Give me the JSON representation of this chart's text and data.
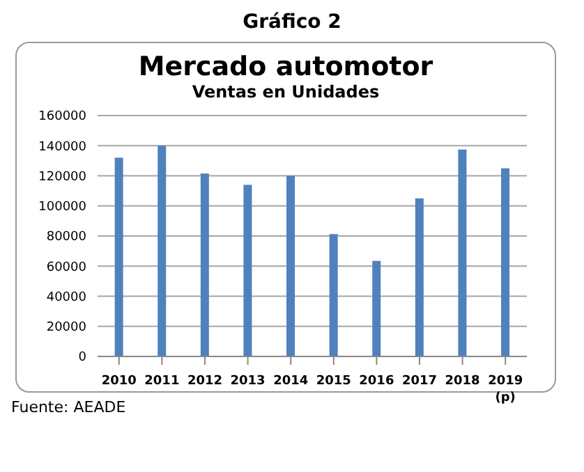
{
  "chart_data": {
    "type": "bar",
    "title": "Mercado automotor",
    "subtitle": "Ventas en Unidades",
    "categories": [
      "2010",
      "2011",
      "2012",
      "2013",
      "2014",
      "2015",
      "2016",
      "2017",
      "2018",
      "2019\n(p)"
    ],
    "values": [
      132000,
      140000,
      121500,
      114000,
      120000,
      81300,
      63500,
      105000,
      137500,
      125000
    ],
    "color": "#4f81bd",
    "ylim": [
      0,
      160000
    ],
    "yticks": [
      0,
      20000,
      40000,
      60000,
      80000,
      100000,
      120000,
      140000,
      160000
    ],
    "grid": "y",
    "annotations": [
      "Gráfico 2",
      "Fuente: AEADE"
    ]
  }
}
